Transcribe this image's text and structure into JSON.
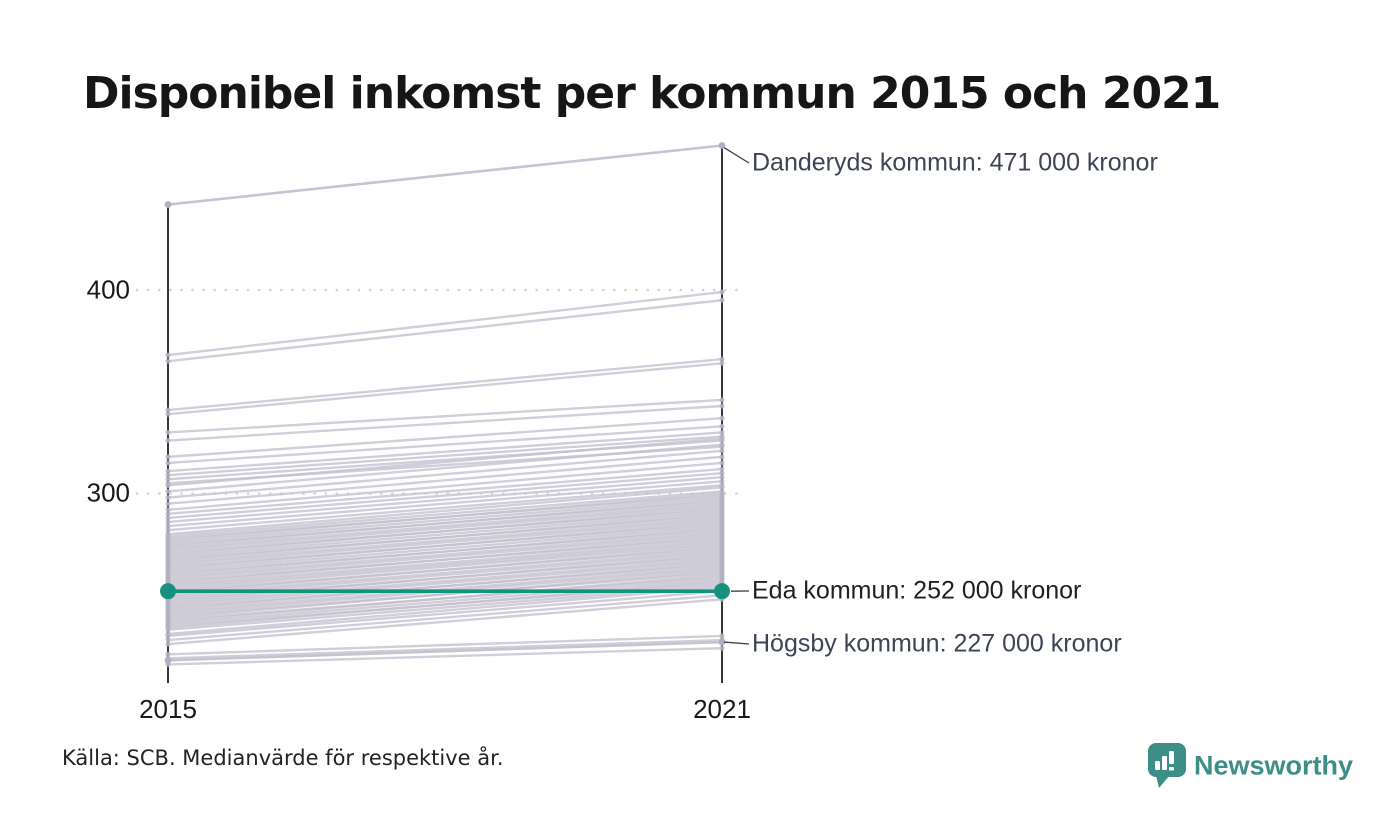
{
  "title": "Disponibel inkomst per kommun 2015 och 2021",
  "source_note": "Källa: SCB. Medianvärde för respektive år.",
  "branding": {
    "name": "Newsworthy",
    "icon": "newsworthy-pin-chart-icon"
  },
  "colors": {
    "accent_teal": "#15917e",
    "line_gray": "#c3c1ce",
    "dot_gray": "#b2b0c0",
    "grid_gray": "#d4d4d4",
    "axis_black": "#141414",
    "connector_gray": "#3e3e3e",
    "annotation_slate": "#3d4554",
    "annotation_dark": "#1d2025",
    "brand_teal": "#3e8e88"
  },
  "axis": {
    "x_labels": [
      "2015",
      "2021"
    ],
    "y_tick_labels": [
      "400",
      "300"
    ]
  },
  "chart_data": {
    "type": "line",
    "subtype": "slope-chart",
    "title": "Disponibel inkomst per kommun 2015 och 2021",
    "x": [
      2015,
      2021
    ],
    "y_ticks": [
      400,
      300
    ],
    "ylim": [
      210,
      480
    ],
    "grid": "dotted-horizontal",
    "legend": "none",
    "highlight_series": {
      "name": "Eda kommun",
      "values": [
        252,
        252
      ],
      "label": "Eda kommun: 252 000 kronor",
      "color": "#15917e"
    },
    "labeled_series": [
      {
        "name": "Danderyds kommun",
        "values": [
          442,
          471
        ],
        "label": "Danderyds kommun: 471 000 kronor"
      },
      {
        "name": "Högsby kommun",
        "values": [
          218,
          227
        ],
        "label": "Högsby kommun: 227 000 kronor"
      }
    ],
    "background_lines": [
      [
        368,
        399
      ],
      [
        365,
        395
      ],
      [
        341,
        366
      ],
      [
        339,
        364
      ],
      [
        330,
        346
      ],
      [
        326,
        343
      ],
      [
        318,
        337
      ],
      [
        315,
        333
      ],
      [
        311,
        330
      ],
      [
        309,
        328
      ],
      [
        307,
        326
      ],
      [
        305,
        323
      ],
      [
        226,
        248
      ],
      [
        228,
        250
      ],
      [
        230,
        252
      ],
      [
        231,
        254
      ],
      [
        233,
        255
      ],
      [
        234,
        257
      ],
      [
        235,
        256
      ],
      [
        236,
        258
      ],
      [
        237,
        260
      ],
      [
        238,
        259
      ],
      [
        239,
        262
      ],
      [
        240,
        261
      ],
      [
        241,
        263
      ],
      [
        242,
        264
      ],
      [
        243,
        266
      ],
      [
        244,
        265
      ],
      [
        245,
        267
      ],
      [
        246,
        268
      ],
      [
        247,
        270
      ],
      [
        248,
        269
      ],
      [
        249,
        271
      ],
      [
        250,
        272
      ],
      [
        251,
        274
      ],
      [
        252,
        273
      ],
      [
        253,
        275
      ],
      [
        254,
        276
      ],
      [
        255,
        277
      ],
      [
        256,
        279
      ],
      [
        257,
        278
      ],
      [
        258,
        280
      ],
      [
        259,
        281
      ],
      [
        260,
        283
      ],
      [
        261,
        282
      ],
      [
        262,
        284
      ],
      [
        263,
        286
      ],
      [
        264,
        285
      ],
      [
        265,
        287
      ],
      [
        266,
        288
      ],
      [
        267,
        290
      ],
      [
        268,
        289
      ],
      [
        269,
        291
      ],
      [
        270,
        293
      ],
      [
        271,
        292
      ],
      [
        272,
        294
      ],
      [
        273,
        295
      ],
      [
        274,
        297
      ],
      [
        275,
        296
      ],
      [
        276,
        298
      ],
      [
        277,
        300
      ],
      [
        278,
        299
      ],
      [
        279,
        301
      ],
      [
        280,
        303
      ],
      [
        282,
        304
      ],
      [
        284,
        306
      ],
      [
        286,
        308
      ],
      [
        288,
        310
      ],
      [
        290,
        312
      ],
      [
        292,
        315
      ],
      [
        295,
        318
      ],
      [
        298,
        321
      ],
      [
        301,
        324
      ],
      [
        304,
        327
      ],
      [
        221,
        230
      ],
      [
        219,
        228
      ],
      [
        216,
        224
      ]
    ]
  }
}
